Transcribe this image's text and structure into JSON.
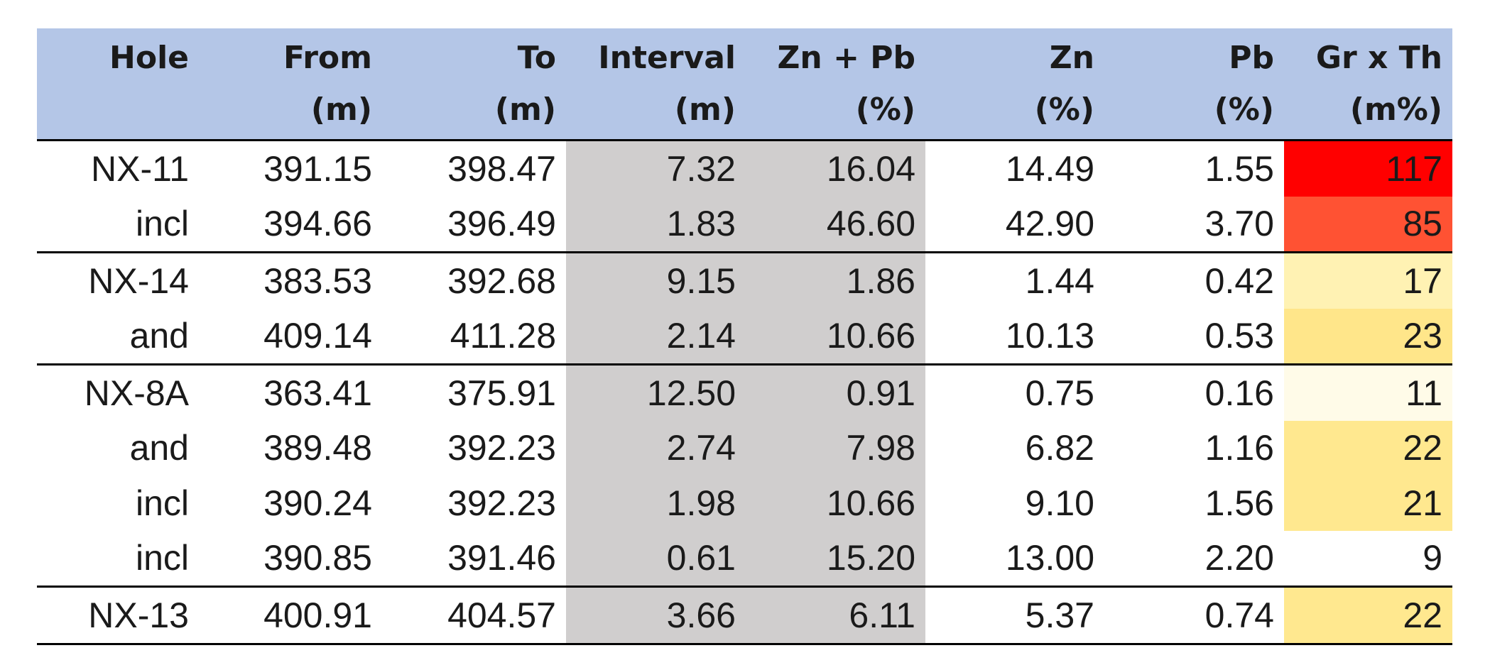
{
  "headers": [
    {
      "l1": "Hole",
      "l2": ""
    },
    {
      "l1": "From",
      "l2": "(m)"
    },
    {
      "l1": "To",
      "l2": "(m)"
    },
    {
      "l1": "Interval",
      "l2": "(m)"
    },
    {
      "l1": "Zn + Pb",
      "l2": "(%)"
    },
    {
      "l1": "Zn",
      "l2": "(%)"
    },
    {
      "l1": "Pb",
      "l2": "(%)"
    },
    {
      "l1": "Gr x Th",
      "l2": "(m%)"
    }
  ],
  "rows": [
    {
      "hole": "NX-11",
      "from": "391.15",
      "to": "398.47",
      "interval": "7.32",
      "znpb": "16.04",
      "zn": "14.49",
      "pb": "1.55",
      "grth": "117",
      "heat": "#ff0000"
    },
    {
      "hole": "incl",
      "from": "394.66",
      "to": "396.49",
      "interval": "1.83",
      "znpb": "46.60",
      "zn": "42.90",
      "pb": "3.70",
      "grth": "85",
      "heat": "#ff5233"
    },
    {
      "hole": "NX-14",
      "from": "383.53",
      "to": "392.68",
      "interval": "9.15",
      "znpb": "1.86",
      "zn": "1.44",
      "pb": "0.42",
      "grth": "17",
      "heat": "#fff2b3"
    },
    {
      "hole": "and",
      "from": "409.14",
      "to": "411.28",
      "interval": "2.14",
      "znpb": "10.66",
      "zn": "10.13",
      "pb": "0.53",
      "grth": "23",
      "heat": "#ffe68a"
    },
    {
      "hole": "NX-8A",
      "from": "363.41",
      "to": "375.91",
      "interval": "12.50",
      "znpb": "0.91",
      "zn": "0.75",
      "pb": "0.16",
      "grth": "11",
      "heat": "#fffbe8"
    },
    {
      "hole": "and",
      "from": "389.48",
      "to": "392.23",
      "interval": "2.74",
      "znpb": "7.98",
      "zn": "6.82",
      "pb": "1.16",
      "grth": "22",
      "heat": "#ffe88f"
    },
    {
      "hole": "incl",
      "from": "390.24",
      "to": "392.23",
      "interval": "1.98",
      "znpb": "10.66",
      "zn": "9.10",
      "pb": "1.56",
      "grth": "21",
      "heat": "#ffe88f"
    },
    {
      "hole": "incl",
      "from": "390.85",
      "to": "391.46",
      "interval": "0.61",
      "znpb": "15.20",
      "zn": "13.00",
      "pb": "2.20",
      "grth": "9",
      "heat": "#ffffff"
    },
    {
      "hole": "NX-13",
      "from": "400.91",
      "to": "404.57",
      "interval": "3.66",
      "znpb": "6.11",
      "zn": "5.37",
      "pb": "0.74",
      "grth": "22",
      "heat": "#ffe88f"
    }
  ]
}
